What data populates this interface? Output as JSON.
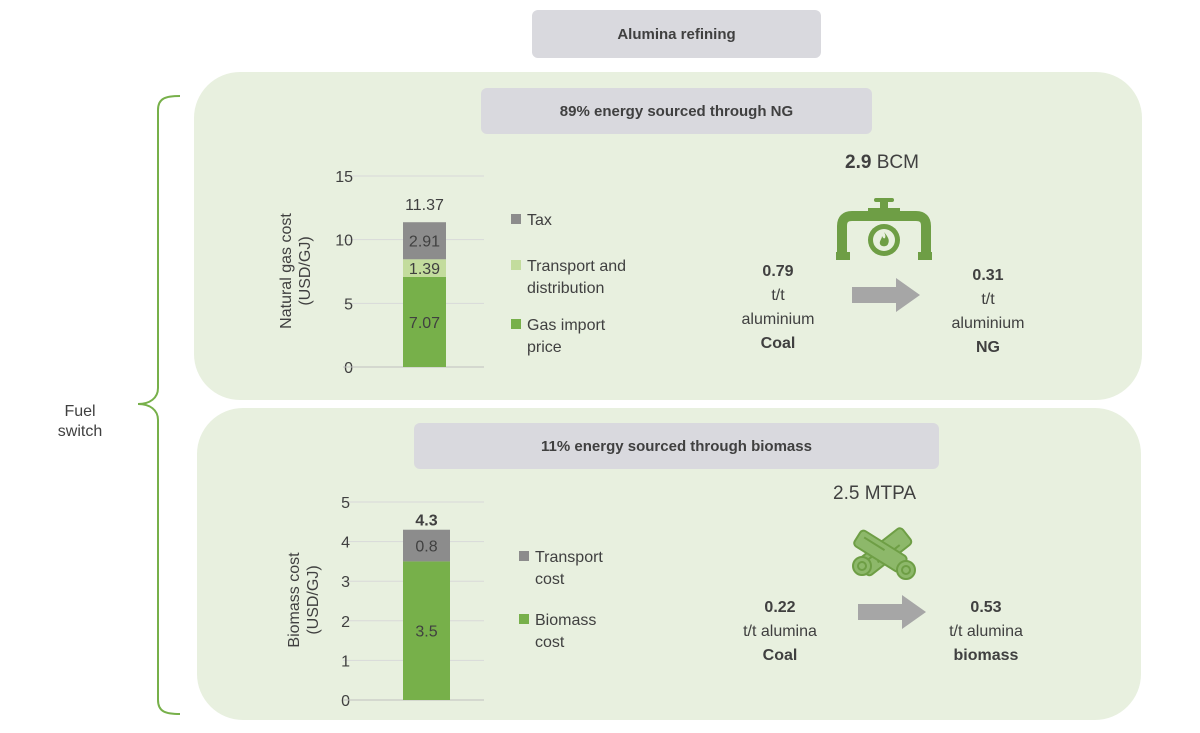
{
  "header": {
    "title": "Alumina refining"
  },
  "side_label": {
    "line1": "Fuel",
    "line2": "switch"
  },
  "colors": {
    "panel": "#e8f0df",
    "pill": "#d9d9de",
    "bracket": "#77b04a",
    "dark_green": "#77b04a",
    "light_green": "#c3dc9d",
    "grey": "#8c8c8c",
    "arrow": "#a6a6a6",
    "icon_green": "#6e9e45"
  },
  "ng": {
    "banner": "89% energy sourced through NG",
    "amount_value": "2.9",
    "amount_unit": "BCM",
    "icon": "gas-pipe-flame-icon",
    "from": {
      "value": "0.79",
      "unit1": "t/t",
      "unit2": "aluminium",
      "fuel": "Coal"
    },
    "to": {
      "value": "0.31",
      "unit1": "t/t",
      "unit2": "aluminium",
      "fuel": "NG"
    }
  },
  "bio": {
    "banner": "11% energy sourced through biomass",
    "amount_value": "2.5",
    "amount_unit": "MTPA",
    "icon": "firewood-logs-icon",
    "from": {
      "value": "0.22",
      "unit1": "t/t alumina",
      "fuel": "Coal"
    },
    "to": {
      "value": "0.53",
      "unit1": "t/t alumina",
      "fuel": "biomass"
    }
  },
  "chart_data": [
    {
      "type": "bar",
      "stacked": true,
      "ylabel": "Natural gas cost (USD/GJ)",
      "ylim": [
        0,
        15
      ],
      "yticks": [
        0,
        5,
        10,
        15
      ],
      "total": "11.37",
      "series": [
        {
          "name": "Gas import price",
          "values": [
            7.07
          ],
          "label": "7.07",
          "color": "#77b04a"
        },
        {
          "name": "Transport and distribution",
          "values": [
            1.39
          ],
          "label": "1.39",
          "color": "#c3dc9d"
        },
        {
          "name": "Tax",
          "values": [
            2.91
          ],
          "label": "2.91",
          "color": "#8c8c8c"
        }
      ],
      "legend": [
        {
          "lines": [
            "Tax"
          ],
          "color": "#8c8c8c"
        },
        {
          "lines": [
            "Transport and",
            "distribution"
          ],
          "color": "#c3dc9d"
        },
        {
          "lines": [
            "Gas import",
            "price"
          ],
          "color": "#77b04a"
        }
      ],
      "grid": true
    },
    {
      "type": "bar",
      "stacked": true,
      "ylabel": "Biomass cost (USD/GJ)",
      "ylim": [
        0,
        5
      ],
      "yticks": [
        0,
        1,
        2,
        3,
        4,
        5
      ],
      "total": "4.3",
      "series": [
        {
          "name": "Biomass cost",
          "values": [
            3.5
          ],
          "label": "3.5",
          "color": "#77b04a"
        },
        {
          "name": "Transport cost",
          "values": [
            0.8
          ],
          "label": "0.8",
          "color": "#8c8c8c"
        }
      ],
      "legend": [
        {
          "lines": [
            "Transport",
            "cost"
          ],
          "color": "#8c8c8c"
        },
        {
          "lines": [
            "Biomass",
            "cost"
          ],
          "color": "#77b04a"
        }
      ],
      "grid": true
    }
  ]
}
